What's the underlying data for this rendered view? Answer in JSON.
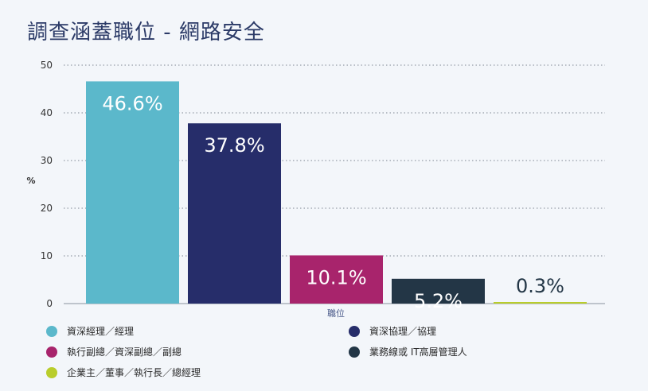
{
  "title": "調查涵蓋職位 - 網路安全",
  "chart_data": {
    "type": "bar",
    "title": "調查涵蓋職位 - 網路安全",
    "xlabel": "職位",
    "ylabel": "%",
    "ylim": [
      0,
      50
    ],
    "yticks": [
      0,
      10,
      20,
      30,
      40,
      50
    ],
    "grid": true,
    "legend_position": "bottom",
    "categories": [
      "資深經理／經理",
      "資深協理／協理",
      "執行副總／資深副總／副總",
      "業務線或 IT高層管理人",
      "企業主／董事／執行長／總經理"
    ],
    "values": [
      46.6,
      37.8,
      10.1,
      5.2,
      0.3
    ],
    "data_labels": [
      "46.6%",
      "37.8%",
      "10.1%",
      "5.2%",
      "0.3%"
    ],
    "colors": [
      "#5bb8cb",
      "#262d6a",
      "#a8246c",
      "#233646",
      "#b9cd2b"
    ],
    "label_colors": [
      "#ffffff",
      "#ffffff",
      "#ffffff",
      "#ffffff",
      "#233646"
    ]
  }
}
